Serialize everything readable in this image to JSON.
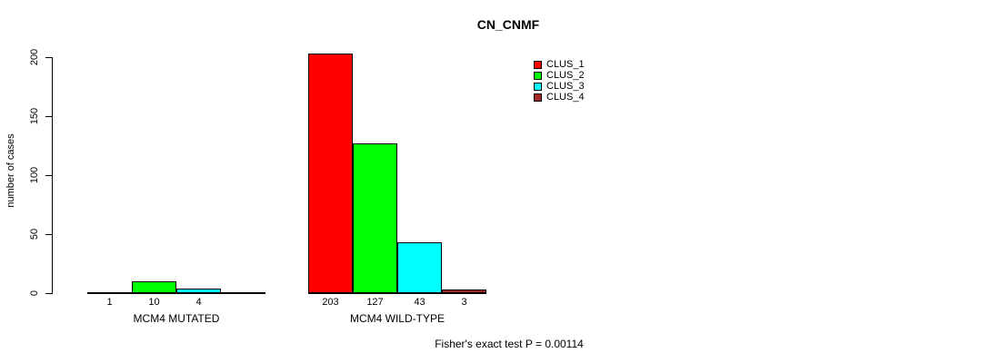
{
  "chart_data": {
    "type": "bar",
    "title": "CN_CNMF",
    "categories": [
      "MCM4 MUTATED",
      "MCM4 WILD-TYPE"
    ],
    "series": [
      {
        "name": "CLUS_1",
        "color": "#FF0000",
        "values": [
          1,
          203
        ]
      },
      {
        "name": "CLUS_2",
        "color": "#00FF00",
        "values": [
          10,
          127
        ]
      },
      {
        "name": "CLUS_3",
        "color": "#00FFFF",
        "values": [
          4,
          43
        ]
      },
      {
        "name": "CLUS_4",
        "color": "#A52A2A",
        "values": [
          0,
          3
        ]
      }
    ],
    "bar_value_labels": [
      [
        "1",
        "10",
        "4",
        ""
      ],
      [
        "203",
        "127",
        "43",
        "3"
      ]
    ],
    "xlabel": "",
    "ylabel": "number of cases",
    "ylim": [
      0,
      200
    ],
    "yticks": [
      0,
      50,
      100,
      150,
      200
    ],
    "grid": false,
    "legend": {
      "position": "top-right",
      "entries": [
        "CLUS_1",
        "CLUS_2",
        "CLUS_3",
        "CLUS_4"
      ],
      "colors": [
        "#FF0000",
        "#00FF00",
        "#00FFFF",
        "#A52A2A"
      ]
    },
    "annotation": "Fisher's exact test P = 0.00114"
  }
}
